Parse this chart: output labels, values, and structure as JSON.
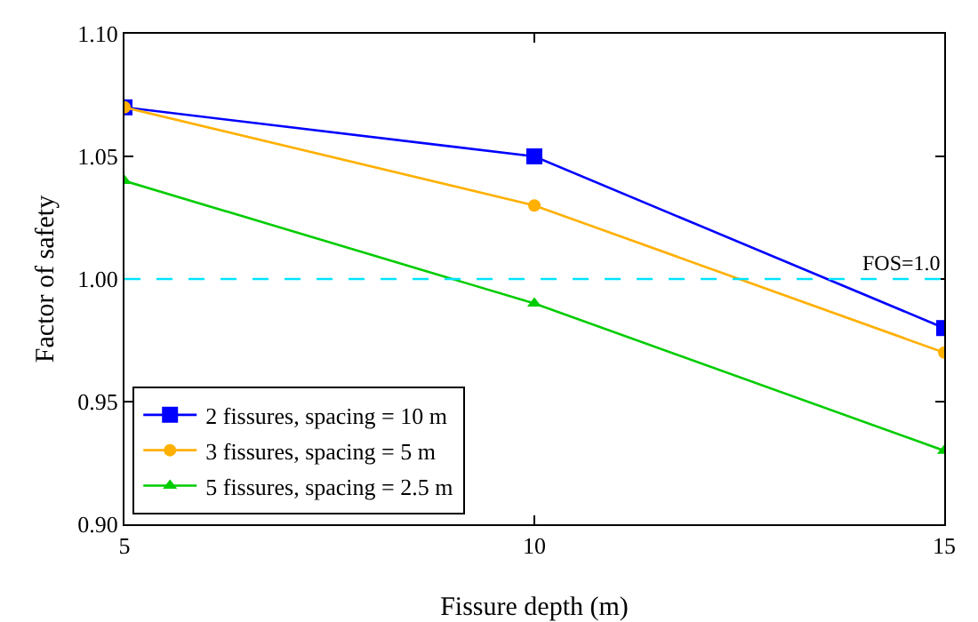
{
  "chart_data": {
    "type": "line",
    "xlabel": "Fissure depth (m)",
    "ylabel": "Factor of safety",
    "x": [
      5,
      10,
      15
    ],
    "series": [
      {
        "name": "2 fissures, spacing = 10 m",
        "color": "#0000ff",
        "values": [
          1.07,
          1.05,
          0.98
        ],
        "marker": "square"
      },
      {
        "name": "3 fissures, spacing = 5 m",
        "color": "#ffb000",
        "values": [
          1.07,
          1.03,
          0.97
        ],
        "marker": "circle"
      },
      {
        "name": "5 fissures, spacing = 2.5 m",
        "color": "#00cc00",
        "values": [
          1.04,
          0.99,
          0.93
        ],
        "marker": "triangle"
      }
    ],
    "xlim": [
      5,
      15
    ],
    "xticks": [
      5,
      10,
      15
    ],
    "ylim": [
      0.9,
      1.1
    ],
    "yticks": [
      {
        "value": 0.9,
        "label": "0.90"
      },
      {
        "value": 0.95,
        "label": "0.95"
      },
      {
        "value": 1.0,
        "label": "1.00"
      },
      {
        "value": 1.05,
        "label": "1.05"
      },
      {
        "value": 1.1,
        "label": "1.10"
      }
    ],
    "ref_lines": [
      {
        "axis": "y",
        "value": 1.0,
        "label": "FOS=1.0",
        "color": "#00e5ff",
        "line_style": "dashed"
      }
    ],
    "grid": false,
    "legend": "bottom left",
    "line_style": "solid"
  }
}
